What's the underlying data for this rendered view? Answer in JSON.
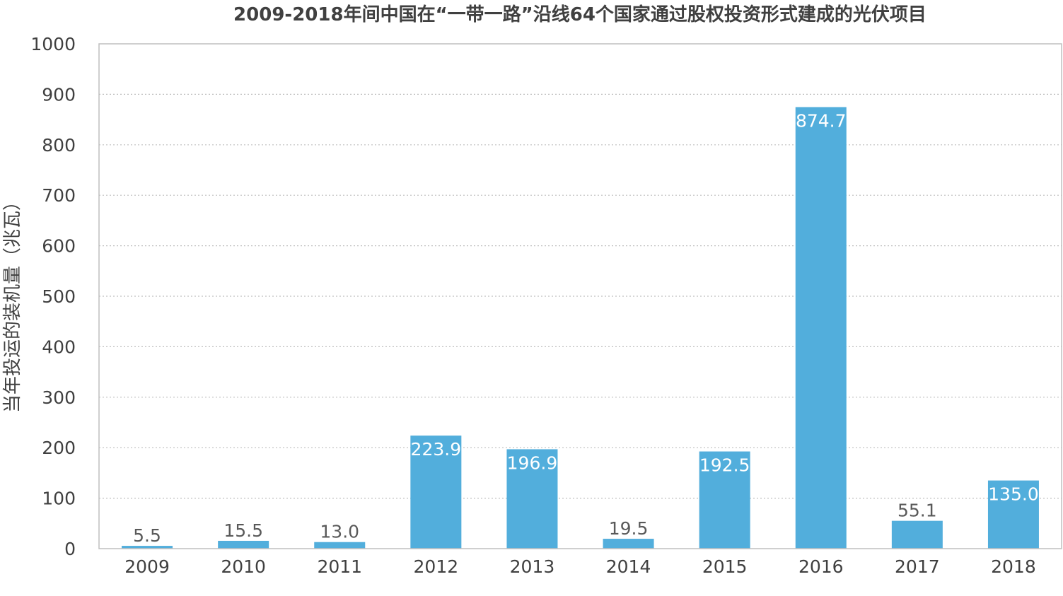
{
  "chart_data": {
    "type": "bar",
    "title": "2009-2018年间中国在“一带一路”沿线64个国家通过股权投资形式建成的光伏项目",
    "xlabel": "",
    "ylabel": "当年投运的装机量（兆瓦）",
    "categories": [
      "2009",
      "2010",
      "2011",
      "2012",
      "2013",
      "2014",
      "2015",
      "2016",
      "2017",
      "2018"
    ],
    "values": [
      5.5,
      15.5,
      13.0,
      223.9,
      196.9,
      19.5,
      192.5,
      874.7,
      55.1,
      135.0
    ],
    "value_labels": [
      "5.5",
      "15.5",
      "13.0",
      "223.9",
      "196.9",
      "19.5",
      "192.5",
      "874.7",
      "55.1",
      "135.0"
    ],
    "ylim": [
      0,
      1000
    ],
    "yticks": [
      "0",
      "100",
      "200",
      "300",
      "400",
      "500",
      "600",
      "700",
      "800",
      "900",
      "1000"
    ],
    "grid": true,
    "legend": "none",
    "colors": {
      "bar": "#52aedc",
      "grid": "#bfbfbf",
      "axis": "#bfbfbf",
      "text": "#404040"
    }
  }
}
